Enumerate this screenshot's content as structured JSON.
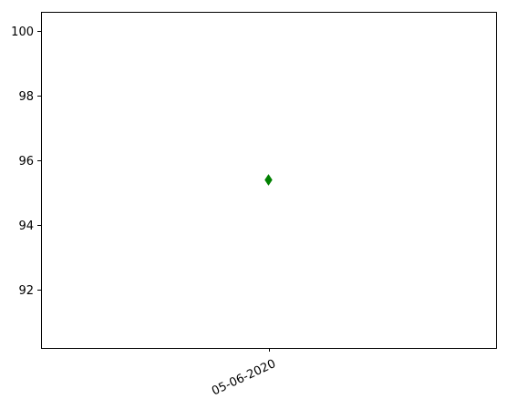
{
  "chart_data": {
    "type": "scatter",
    "x_tick_labels": [
      "05-06-2020"
    ],
    "y_tick_labels": [
      "92",
      "94",
      "96",
      "98",
      "100"
    ],
    "y_ticks": [
      92,
      94,
      96,
      98,
      100
    ],
    "ylim": [
      90.2,
      100.6
    ],
    "x_categories": [
      "05-06-2020"
    ],
    "points": [
      {
        "x": "05-06-2020",
        "y": 95.4
      }
    ],
    "marker": "diamond",
    "marker_color": "#008000",
    "title": "",
    "xlabel": "",
    "ylabel": "",
    "grid": false,
    "x_tick_rotation": "rotated"
  }
}
